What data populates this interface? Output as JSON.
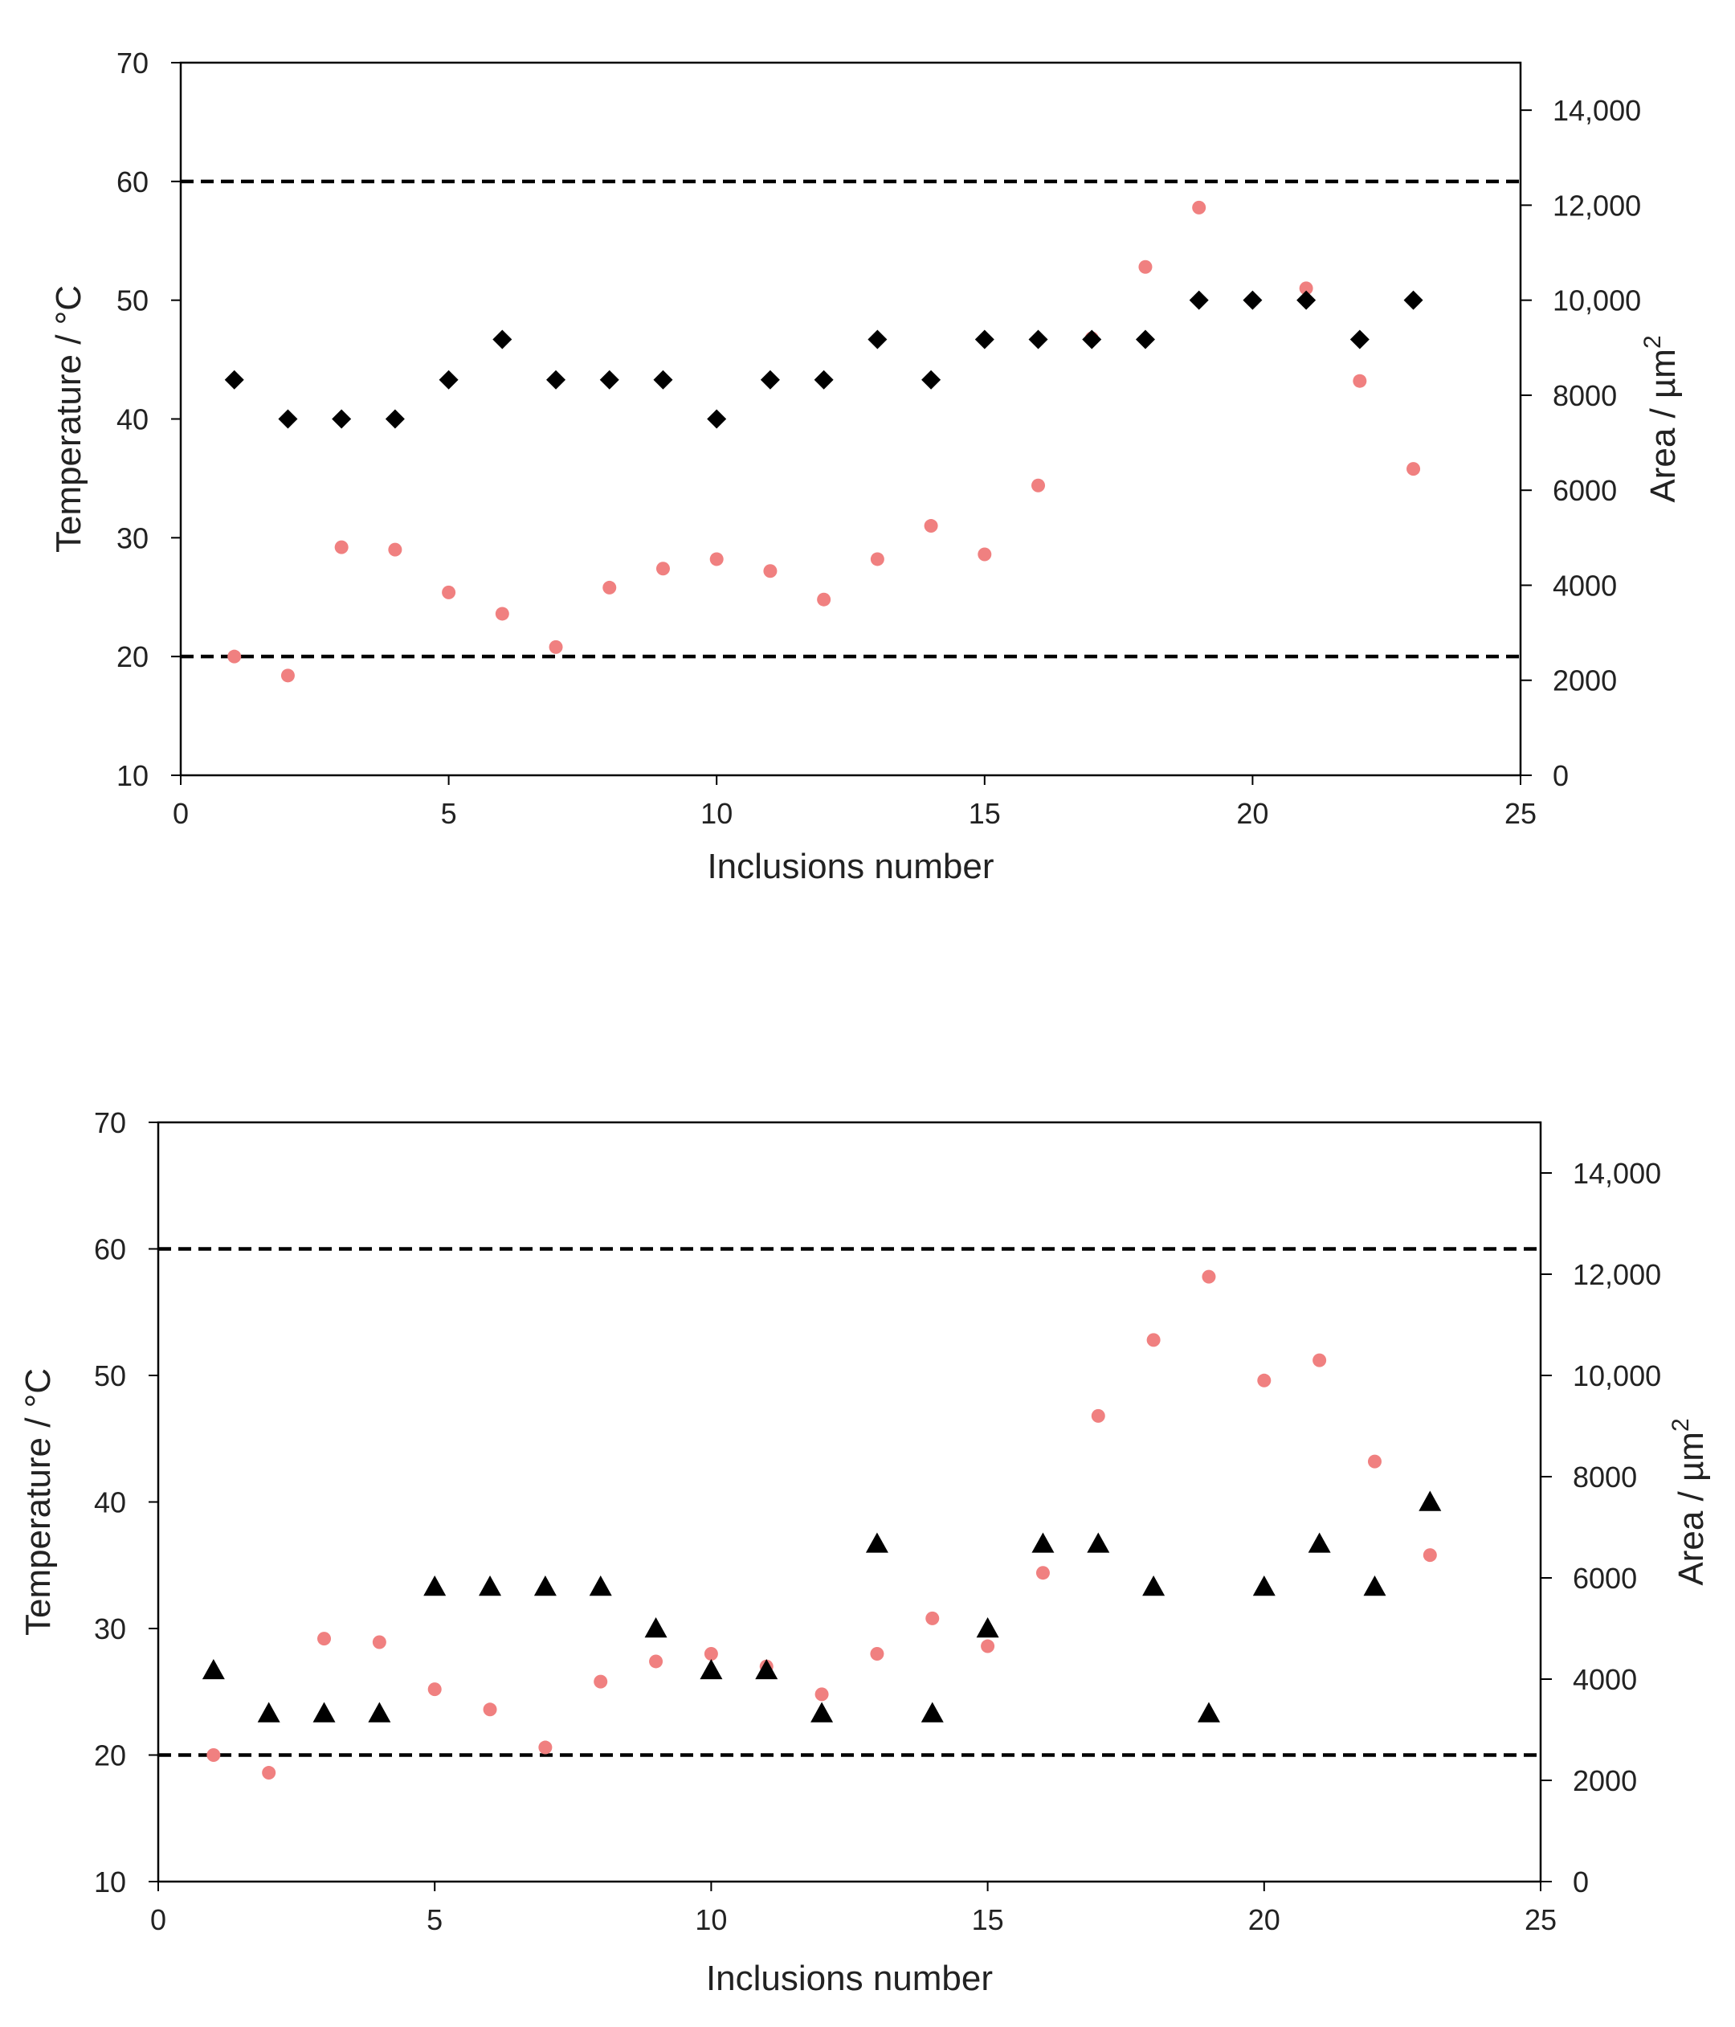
{
  "chart_data": [
    {
      "type": "scatter",
      "xlabel": "Inclusions number",
      "ylabel": "Temperature / °C",
      "y2label": "Area  / µm",
      "y2label_sup": "2",
      "xlim": [
        0,
        25
      ],
      "ylim": [
        10,
        70
      ],
      "y2lim": [
        0,
        15000
      ],
      "x_ticks": [
        "0",
        "5",
        "10",
        "15",
        "20",
        "25"
      ],
      "y_ticks": [
        "10",
        "20",
        "30",
        "40",
        "50",
        "60",
        "70"
      ],
      "y2_ticks": [
        "0",
        "2000",
        "4000",
        "6000",
        "8000",
        "10,000",
        "12,000",
        "14,000"
      ],
      "reference_lines": [
        20,
        60
      ],
      "series": [
        {
          "name": "Temperature",
          "marker": "diamond",
          "axis": "left",
          "color": "#000000",
          "x": [
            1,
            2,
            3,
            4,
            5,
            6,
            7,
            8,
            9,
            10,
            11,
            12,
            13,
            14,
            15,
            16,
            17,
            18,
            19,
            20,
            21,
            22,
            23
          ],
          "values": [
            43.3,
            40.0,
            40.0,
            40.0,
            43.3,
            46.7,
            43.3,
            43.3,
            43.3,
            40.0,
            43.3,
            43.3,
            46.7,
            43.3,
            46.7,
            46.7,
            46.7,
            46.7,
            50.0,
            50.0,
            50.0,
            46.7,
            50.0
          ]
        },
        {
          "name": "Area",
          "marker": "circle",
          "axis": "right",
          "color": "#f08080",
          "x": [
            1,
            2,
            3,
            4,
            5,
            6,
            7,
            8,
            9,
            10,
            11,
            12,
            13,
            14,
            15,
            16,
            17,
            18,
            19,
            20,
            21,
            22,
            23
          ],
          "values": [
            2500,
            2100,
            4800,
            4750,
            3850,
            3400,
            2700,
            3950,
            4350,
            4550,
            4300,
            3700,
            4550,
            5250,
            4650,
            6100,
            9200,
            10700,
            11950,
            10000,
            10250,
            8300,
            6450
          ]
        }
      ]
    },
    {
      "type": "scatter",
      "xlabel": "Inclusions number",
      "ylabel": "Temperature / °C",
      "y2label": "Area  / µm",
      "y2label_sup": "2",
      "xlim": [
        0,
        25
      ],
      "ylim": [
        10,
        70
      ],
      "y2lim": [
        0,
        15000
      ],
      "x_ticks": [
        "0",
        "5",
        "10",
        "15",
        "20",
        "25"
      ],
      "y_ticks": [
        "10",
        "20",
        "30",
        "40",
        "50",
        "60",
        "70"
      ],
      "y2_ticks": [
        "0",
        "2000",
        "4000",
        "6000",
        "8000",
        "10,000",
        "12,000",
        "14,000"
      ],
      "reference_lines": [
        20,
        60
      ],
      "series": [
        {
          "name": "Temperature",
          "marker": "triangle",
          "axis": "left",
          "color": "#000000",
          "x": [
            1,
            2,
            3,
            4,
            5,
            6,
            7,
            8,
            9,
            10,
            11,
            12,
            13,
            14,
            15,
            16,
            17,
            18,
            19,
            20,
            21,
            22,
            23
          ],
          "values": [
            26.7,
            23.3,
            23.3,
            23.3,
            33.3,
            33.3,
            33.3,
            33.3,
            30.0,
            26.7,
            26.7,
            23.3,
            36.7,
            23.3,
            30.0,
            36.7,
            36.7,
            33.3,
            23.3,
            33.3,
            36.7,
            33.3,
            40.0
          ]
        },
        {
          "name": "Area",
          "marker": "circle",
          "axis": "right",
          "color": "#f08080",
          "x": [
            1,
            2,
            3,
            4,
            5,
            6,
            7,
            8,
            9,
            10,
            11,
            12,
            13,
            14,
            15,
            16,
            17,
            18,
            19,
            20,
            21,
            22,
            23
          ],
          "values": [
            2500,
            2150,
            4800,
            4730,
            3800,
            3400,
            2650,
            3950,
            4350,
            4500,
            4250,
            3700,
            4500,
            5200,
            4650,
            6100,
            9200,
            10700,
            11950,
            9900,
            10300,
            8300,
            6450
          ]
        }
      ]
    }
  ]
}
